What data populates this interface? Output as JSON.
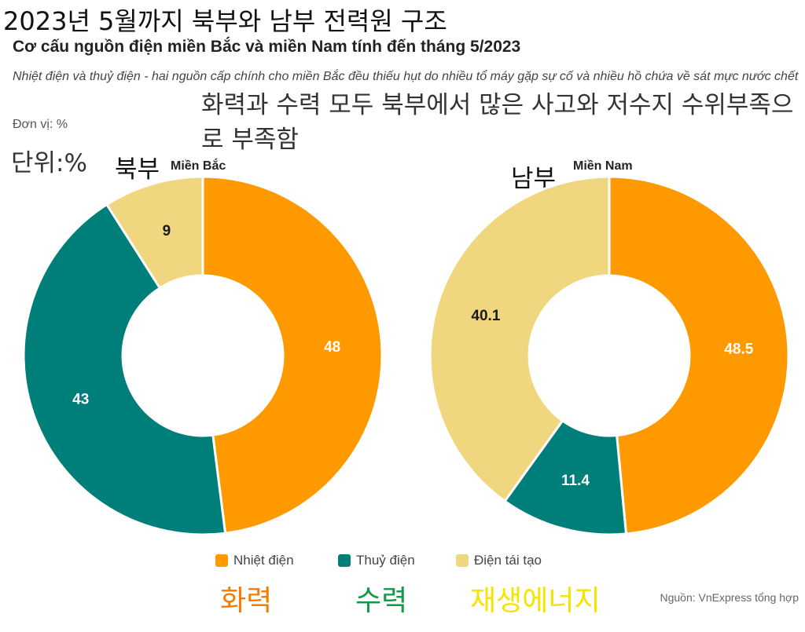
{
  "header": {
    "title_ko": "2023년 5월까지 북부와 남부 전력원 구조",
    "title_vi": "Cơ cấu nguồn điện miền Bắc và miền Nam tính đến tháng 5/2023",
    "subtitle_vi": "Nhiệt điện và thuỷ điện - hai nguồn cấp chính cho miền Bắc đều thiếu hụt do nhiều tổ máy gặp sự cố và nhiều hồ chứa về sát mực nước chết",
    "subtitle_ko": "화력과 수력 모두 북부에서 많은 사고와 저수지 수위부족으로 부족함",
    "unit_vi": "Đơn vị: %",
    "unit_ko": "단위:%"
  },
  "colors": {
    "thermal": "#FF9900",
    "hydro": "#007F7A",
    "renewable": "#F0D77F",
    "ko_thermal": "#F57C00",
    "ko_hydro": "#119944",
    "ko_renewable": "#F2E600"
  },
  "legend": {
    "items": [
      {
        "label": "Nhiệt điện",
        "label_ko": "화력",
        "color_key": "thermal"
      },
      {
        "label": "Thuỷ điện",
        "label_ko": "수력",
        "color_key": "hydro"
      },
      {
        "label": "Điện tái tạo",
        "label_ko": "재생에너지",
        "color_key": "renewable"
      }
    ]
  },
  "source": "Nguồn: VnExpress tổng hợp",
  "chart_data": [
    {
      "type": "pie",
      "title": "Miền Bắc",
      "title_ko": "북부",
      "categories": [
        "Nhiệt điện",
        "Thuỷ điện",
        "Điện tái tạo"
      ],
      "values": [
        48,
        43,
        9
      ],
      "labels": [
        "48",
        "43",
        "9"
      ]
    },
    {
      "type": "pie",
      "title": "Miền Nam",
      "title_ko": "남부",
      "categories": [
        "Nhiệt điện",
        "Thuỷ điện",
        "Điện tái tạo"
      ],
      "values": [
        48.5,
        11.4,
        40.1
      ],
      "labels": [
        "48.5",
        "11.4",
        "40.1"
      ]
    }
  ]
}
